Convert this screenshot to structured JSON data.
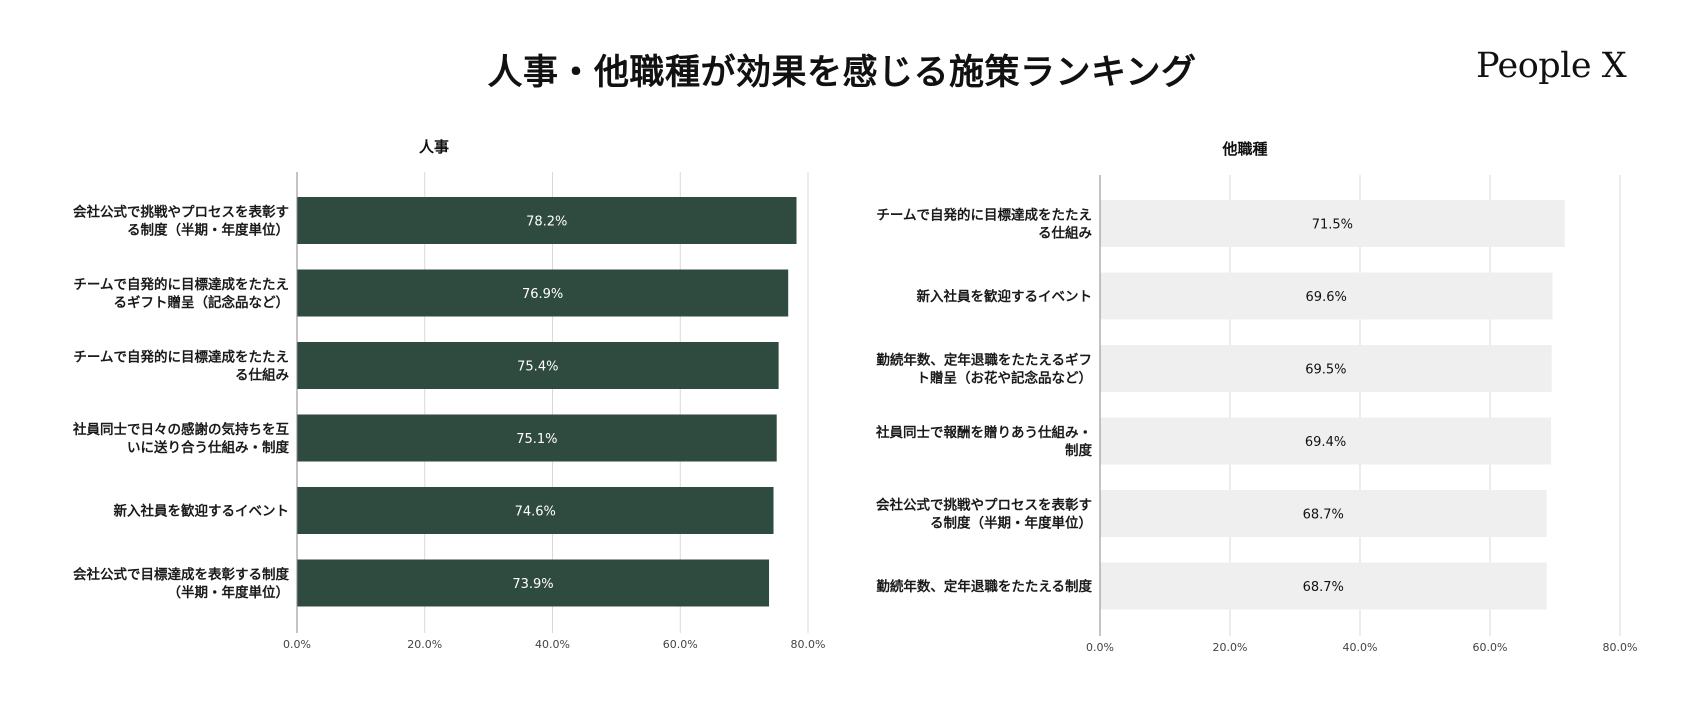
{
  "page": {
    "title": "人事・他職種が効果を感じる施策ランキング",
    "logo": "People X"
  },
  "colors": {
    "hr_bar": "#2f4a3f",
    "other_bar": "#efefef",
    "hr_label": "#ffffff",
    "other_label": "#111111",
    "grid": "#d9d9d9",
    "axis": "#888888"
  },
  "chart_data": [
    {
      "type": "bar",
      "orientation": "horizontal",
      "title": "人事",
      "categories": [
        [
          "会社公式で挑戦やプロセスを表彰す",
          "る制度（半期・年度単位）"
        ],
        [
          "チームで自発的に目標達成をたたえ",
          "るギフト贈呈（記念品など）"
        ],
        [
          "チームで自発的に目標達成をたたえ",
          "る仕組み"
        ],
        [
          "社員同士で日々の感謝の気持ちを互",
          "いに送り合う仕組み・制度"
        ],
        [
          "新入社員を歓迎するイベント"
        ],
        [
          "会社公式で目標達成を表彰する制度",
          "（半期・年度単位）"
        ]
      ],
      "values": [
        78.2,
        76.9,
        75.4,
        75.1,
        74.6,
        73.9
      ],
      "value_labels": [
        "78.2%",
        "76.9%",
        "75.4%",
        "75.1%",
        "74.6%",
        "73.9%"
      ],
      "xlim": [
        0,
        80
      ],
      "xticks": [
        "0.0%",
        "20.0%",
        "40.0%",
        "60.0%",
        "80.0%"
      ],
      "grid": true
    },
    {
      "type": "bar",
      "orientation": "horizontal",
      "title": "他職種",
      "categories": [
        [
          "チームで自発的に目標達成をたたえ",
          "る仕組み"
        ],
        [
          "新入社員を歓迎するイベント"
        ],
        [
          "勤続年数、定年退職をたたえるギフ",
          "ト贈呈（お花や記念品など）"
        ],
        [
          "社員同士で報酬を贈りあう仕組み・",
          "制度"
        ],
        [
          "会社公式で挑戦やプロセスを表彰す",
          "る制度（半期・年度単位）"
        ],
        [
          "勤続年数、定年退職をたたえる制度"
        ]
      ],
      "values": [
        71.5,
        69.6,
        69.5,
        69.4,
        68.7,
        68.7
      ],
      "value_labels": [
        "71.5%",
        "69.6%",
        "69.5%",
        "69.4%",
        "68.7%",
        "68.7%"
      ],
      "xlim": [
        0,
        80
      ],
      "xticks": [
        "0.0%",
        "20.0%",
        "40.0%",
        "60.0%",
        "80.0%"
      ],
      "grid": true
    }
  ]
}
